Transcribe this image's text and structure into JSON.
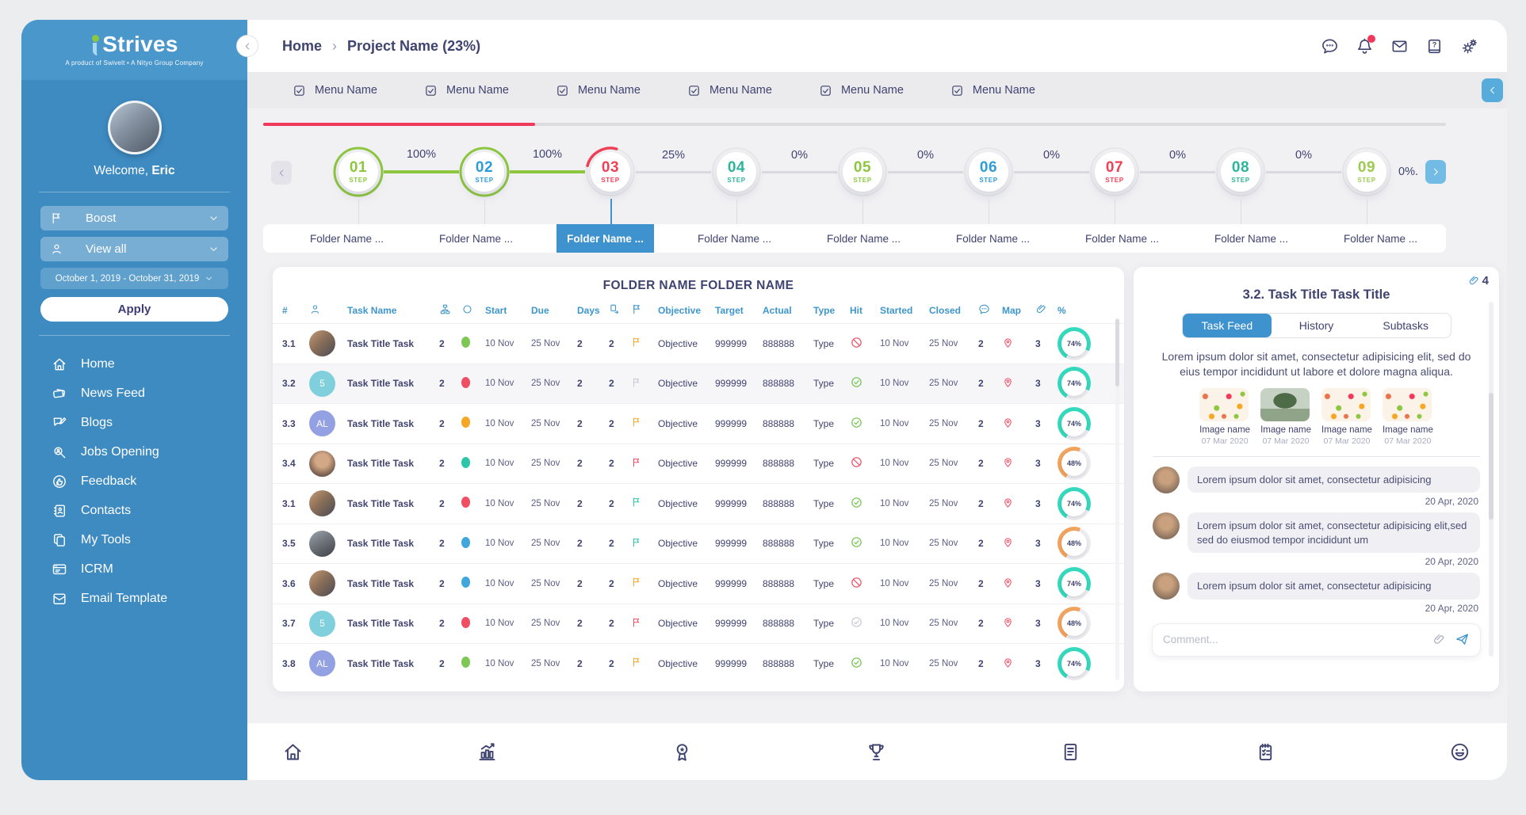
{
  "app": {
    "logo_text": "Strives",
    "tagline": "A product of Swivelt • A Nityo Group Company"
  },
  "sidebar": {
    "welcome_prefix": "Welcome,",
    "user_name": "Eric",
    "boost_label": "Boost",
    "view_all_label": "View all",
    "date_range": "October 1, 2019 - October 31, 2019",
    "apply_label": "Apply",
    "nav": [
      {
        "label": "Home",
        "icon": "home"
      },
      {
        "label": "News Feed",
        "icon": "news"
      },
      {
        "label": "Blogs",
        "icon": "blog"
      },
      {
        "label": "Jobs Opening",
        "icon": "search"
      },
      {
        "label": "Feedback",
        "icon": "thumb"
      },
      {
        "label": "Contacts",
        "icon": "contacts"
      },
      {
        "label": "My Tools",
        "icon": "copy"
      },
      {
        "label": "ICRM",
        "icon": "browser"
      },
      {
        "label": "Email Template",
        "icon": "envelope-doc"
      }
    ]
  },
  "header": {
    "breadcrumb_home": "Home",
    "breadcrumb_sep": "›",
    "breadcrumb_current": "Project Name",
    "breadcrumb_pct": "(23%)",
    "icons": [
      "chat",
      "bell",
      "mail",
      "help",
      "settings"
    ]
  },
  "menubar": {
    "items": [
      "Menu Name",
      "Menu Name",
      "Menu Name",
      "Menu Name",
      "Menu Name",
      "Menu Name"
    ]
  },
  "progress": {
    "percent": 23,
    "color": "#F2385A"
  },
  "steps": {
    "step_word": "STEP",
    "items": [
      {
        "num": "01",
        "color": "#8DC63F",
        "ring": "green"
      },
      {
        "num": "02",
        "color": "#2D9CDB",
        "ring": "green"
      },
      {
        "num": "03",
        "color": "#EF4056",
        "ring": "arc",
        "arc_pct": 25
      },
      {
        "num": "04",
        "color": "#2BB59A",
        "ring": "gray"
      },
      {
        "num": "05",
        "color": "#8DC63F",
        "ring": "gray"
      },
      {
        "num": "06",
        "color": "#2D9CDB",
        "ring": "gray"
      },
      {
        "num": "07",
        "color": "#EF4056",
        "ring": "gray"
      },
      {
        "num": "08",
        "color": "#2BB59A",
        "ring": "gray"
      },
      {
        "num": "09",
        "color": "#9BCB4F",
        "ring": "gray"
      }
    ],
    "connectors": [
      {
        "label": "100%",
        "green": true
      },
      {
        "label": "100%",
        "green": true
      },
      {
        "label": "25%",
        "green": false
      },
      {
        "label": "0%",
        "green": false
      },
      {
        "label": "0%",
        "green": false
      },
      {
        "label": "0%",
        "green": false
      },
      {
        "label": "0%",
        "green": false
      },
      {
        "label": "0%",
        "green": false
      }
    ],
    "trailing_label": "0%.",
    "active_index": 2
  },
  "folders": {
    "tabs": [
      "Folder Name ...",
      "Folder Name ...",
      "Folder Name ...",
      "Folder Name ...",
      "Folder Name ...",
      "Folder Name ...",
      "Folder Name ...",
      "Folder Name ...",
      "Folder Name ..."
    ],
    "active_index": 2
  },
  "table": {
    "title": "FOLDER NAME FOLDER NAME",
    "columns": [
      {
        "type": "label",
        "value": "#"
      },
      {
        "type": "icon",
        "value": "person"
      },
      {
        "type": "label",
        "value": "Task Name"
      },
      {
        "type": "icon",
        "value": "sitemap"
      },
      {
        "type": "icon",
        "value": "circle"
      },
      {
        "type": "label",
        "value": "Start"
      },
      {
        "type": "label",
        "value": "Due"
      },
      {
        "type": "label",
        "value": "Days"
      },
      {
        "type": "icon",
        "value": "subtask"
      },
      {
        "type": "icon",
        "value": "flag"
      },
      {
        "type": "label",
        "value": "Objective"
      },
      {
        "type": "label",
        "value": "Target"
      },
      {
        "type": "label",
        "value": "Actual"
      },
      {
        "type": "label",
        "value": "Type"
      },
      {
        "type": "label",
        "value": "Hit"
      },
      {
        "type": "label",
        "value": "Started"
      },
      {
        "type": "label",
        "value": "Closed"
      },
      {
        "type": "icon",
        "value": "chat"
      },
      {
        "type": "label",
        "value": "Map"
      },
      {
        "type": "icon",
        "value": "clip"
      },
      {
        "type": "label",
        "value": "%"
      }
    ],
    "rows": [
      {
        "id": "3.1",
        "avatar": {
          "type": "photo",
          "variant": 0
        },
        "task": "Task Title Task",
        "qty": "2",
        "dot": "#7DC855",
        "start": "10 Nov",
        "due": "25 Nov",
        "days": "2",
        "sub": "2",
        "flag": "#F5A623",
        "objective": "Objective",
        "target": "999999",
        "actual": "888888",
        "type": "Type",
        "hit": "no",
        "started": "10 Nov",
        "closed": "25 Nov",
        "chat": "2",
        "clip": "3",
        "pct": 74,
        "selected": false
      },
      {
        "id": "3.2",
        "avatar": {
          "type": "text",
          "text": "5",
          "bg": "#7FCFDC"
        },
        "task": "Task Title Task",
        "qty": "2",
        "dot": "#F04E62",
        "start": "10 Nov",
        "due": "25 Nov",
        "days": "2",
        "sub": "2",
        "flag": "#C6C8D4",
        "objective": "Objective",
        "target": "999999",
        "actual": "888888",
        "type": "Type",
        "hit": "yes",
        "started": "10 Nov",
        "closed": "25 Nov",
        "chat": "2",
        "clip": "3",
        "pct": 74,
        "selected": true
      },
      {
        "id": "3.3",
        "avatar": {
          "type": "text",
          "text": "AL",
          "bg": "#93A1E3"
        },
        "task": "Task Title Task",
        "qty": "2",
        "dot": "#F5A623",
        "start": "10 Nov",
        "due": "25 Nov",
        "days": "2",
        "sub": "2",
        "flag": "#F5A623",
        "objective": "Objective",
        "target": "999999",
        "actual": "888888",
        "type": "Type",
        "hit": "yes",
        "started": "10 Nov",
        "closed": "25 Nov",
        "chat": "2",
        "clip": "3",
        "pct": 74,
        "selected": false
      },
      {
        "id": "3.4",
        "avatar": {
          "type": "photo",
          "variant": 1
        },
        "task": "Task Title Task",
        "qty": "2",
        "dot": "#2BC6A8",
        "start": "10 Nov",
        "due": "25 Nov",
        "days": "2",
        "sub": "2",
        "flag": "#F04E62",
        "objective": "Objective",
        "target": "999999",
        "actual": "888888",
        "type": "Type",
        "hit": "no",
        "started": "10 Nov",
        "closed": "25 Nov",
        "chat": "2",
        "clip": "3",
        "pct": 48,
        "selected": false
      },
      {
        "id": "3.1",
        "avatar": {
          "type": "photo",
          "variant": 0
        },
        "task": "Task Title Task",
        "qty": "2",
        "dot": "#F04E62",
        "start": "10 Nov",
        "due": "25 Nov",
        "days": "2",
        "sub": "2",
        "flag": "#2BC6A8",
        "objective": "Objective",
        "target": "999999",
        "actual": "888888",
        "type": "Type",
        "hit": "yes",
        "started": "10 Nov",
        "closed": "25 Nov",
        "chat": "2",
        "clip": "3",
        "pct": 74,
        "selected": false
      },
      {
        "id": "3.5",
        "avatar": {
          "type": "photo",
          "variant": 2
        },
        "task": "Task Title Task",
        "qty": "2",
        "dot": "#3FA7DC",
        "start": "10 Nov",
        "due": "25 Nov",
        "days": "2",
        "sub": "2",
        "flag": "#2BC6A8",
        "objective": "Objective",
        "target": "999999",
        "actual": "888888",
        "type": "Type",
        "hit": "yes",
        "started": "10 Nov",
        "closed": "25 Nov",
        "chat": "2",
        "clip": "3",
        "pct": 48,
        "selected": false
      },
      {
        "id": "3.6",
        "avatar": {
          "type": "photo",
          "variant": 0
        },
        "task": "Task Title Task",
        "qty": "2",
        "dot": "#3FA7DC",
        "start": "10 Nov",
        "due": "25 Nov",
        "days": "2",
        "sub": "2",
        "flag": "#F5A623",
        "objective": "Objective",
        "target": "999999",
        "actual": "888888",
        "type": "Type",
        "hit": "no",
        "started": "10 Nov",
        "closed": "25 Nov",
        "chat": "2",
        "clip": "3",
        "pct": 74,
        "selected": false
      },
      {
        "id": "3.7",
        "avatar": {
          "type": "text",
          "text": "5",
          "bg": "#7FCFDC"
        },
        "task": "Task Title Task",
        "qty": "2",
        "dot": "#F04E62",
        "start": "10 Nov",
        "due": "25 Nov",
        "days": "2",
        "sub": "2",
        "flag": "#F04E62",
        "objective": "Objective",
        "target": "999999",
        "actual": "888888",
        "type": "Type",
        "hit": "pending",
        "started": "10 Nov",
        "closed": "25 Nov",
        "chat": "2",
        "clip": "3",
        "pct": 48,
        "selected": false
      },
      {
        "id": "3.8",
        "avatar": {
          "type": "text",
          "text": "AL",
          "bg": "#93A1E3"
        },
        "task": "Task Title Task",
        "qty": "2",
        "dot": "#7DC855",
        "start": "10 Nov",
        "due": "25 Nov",
        "days": "2",
        "sub": "2",
        "flag": "#F5A623",
        "objective": "Objective",
        "target": "999999",
        "actual": "888888",
        "type": "Type",
        "hit": "yes",
        "started": "10 Nov",
        "closed": "25 Nov",
        "chat": "2",
        "clip": "3",
        "pct": 74,
        "selected": false
      }
    ],
    "pct_colors": {
      "74": "#35D9BD",
      "48": "#F2A35E"
    }
  },
  "right_panel": {
    "attach_count": "4",
    "title": "3.2. Task Title Task Title",
    "tabs": [
      "Task Feed",
      "History",
      "Subtasks"
    ],
    "active_tab": 0,
    "description": "Lorem ipsum dolor sit amet, consectetur adipisicing elit, sed do eius tempor incididunt ut labore et dolore magna aliqua.",
    "images": [
      {
        "name": "Image name",
        "date": "07 Mar 2020",
        "kind": "floral"
      },
      {
        "name": "Image name",
        "date": "07 Mar 2020",
        "kind": "tree"
      },
      {
        "name": "Image name",
        "date": "07 Mar 2020",
        "kind": "floral"
      },
      {
        "name": "Image name",
        "date": "07 Mar 2020",
        "kind": "floral"
      }
    ],
    "comments": [
      {
        "text": "Lorem ipsum dolor sit amet, consectetur adipisicing",
        "date": "20 Apr, 2020"
      },
      {
        "text": "Lorem ipsum dolor sit amet, consectetur adipisicing elit,sed sed do eiusmod tempor incididunt um",
        "date": "20 Apr, 2020"
      },
      {
        "text": "Lorem ipsum dolor sit amet, consectetur adipisicing",
        "date": "20 Apr, 2020"
      }
    ],
    "comment_placeholder": "Comment..."
  },
  "bottom_bar": {
    "icons": [
      "home",
      "chart",
      "medal",
      "trophy",
      "report",
      "notes",
      "smiley"
    ]
  }
}
